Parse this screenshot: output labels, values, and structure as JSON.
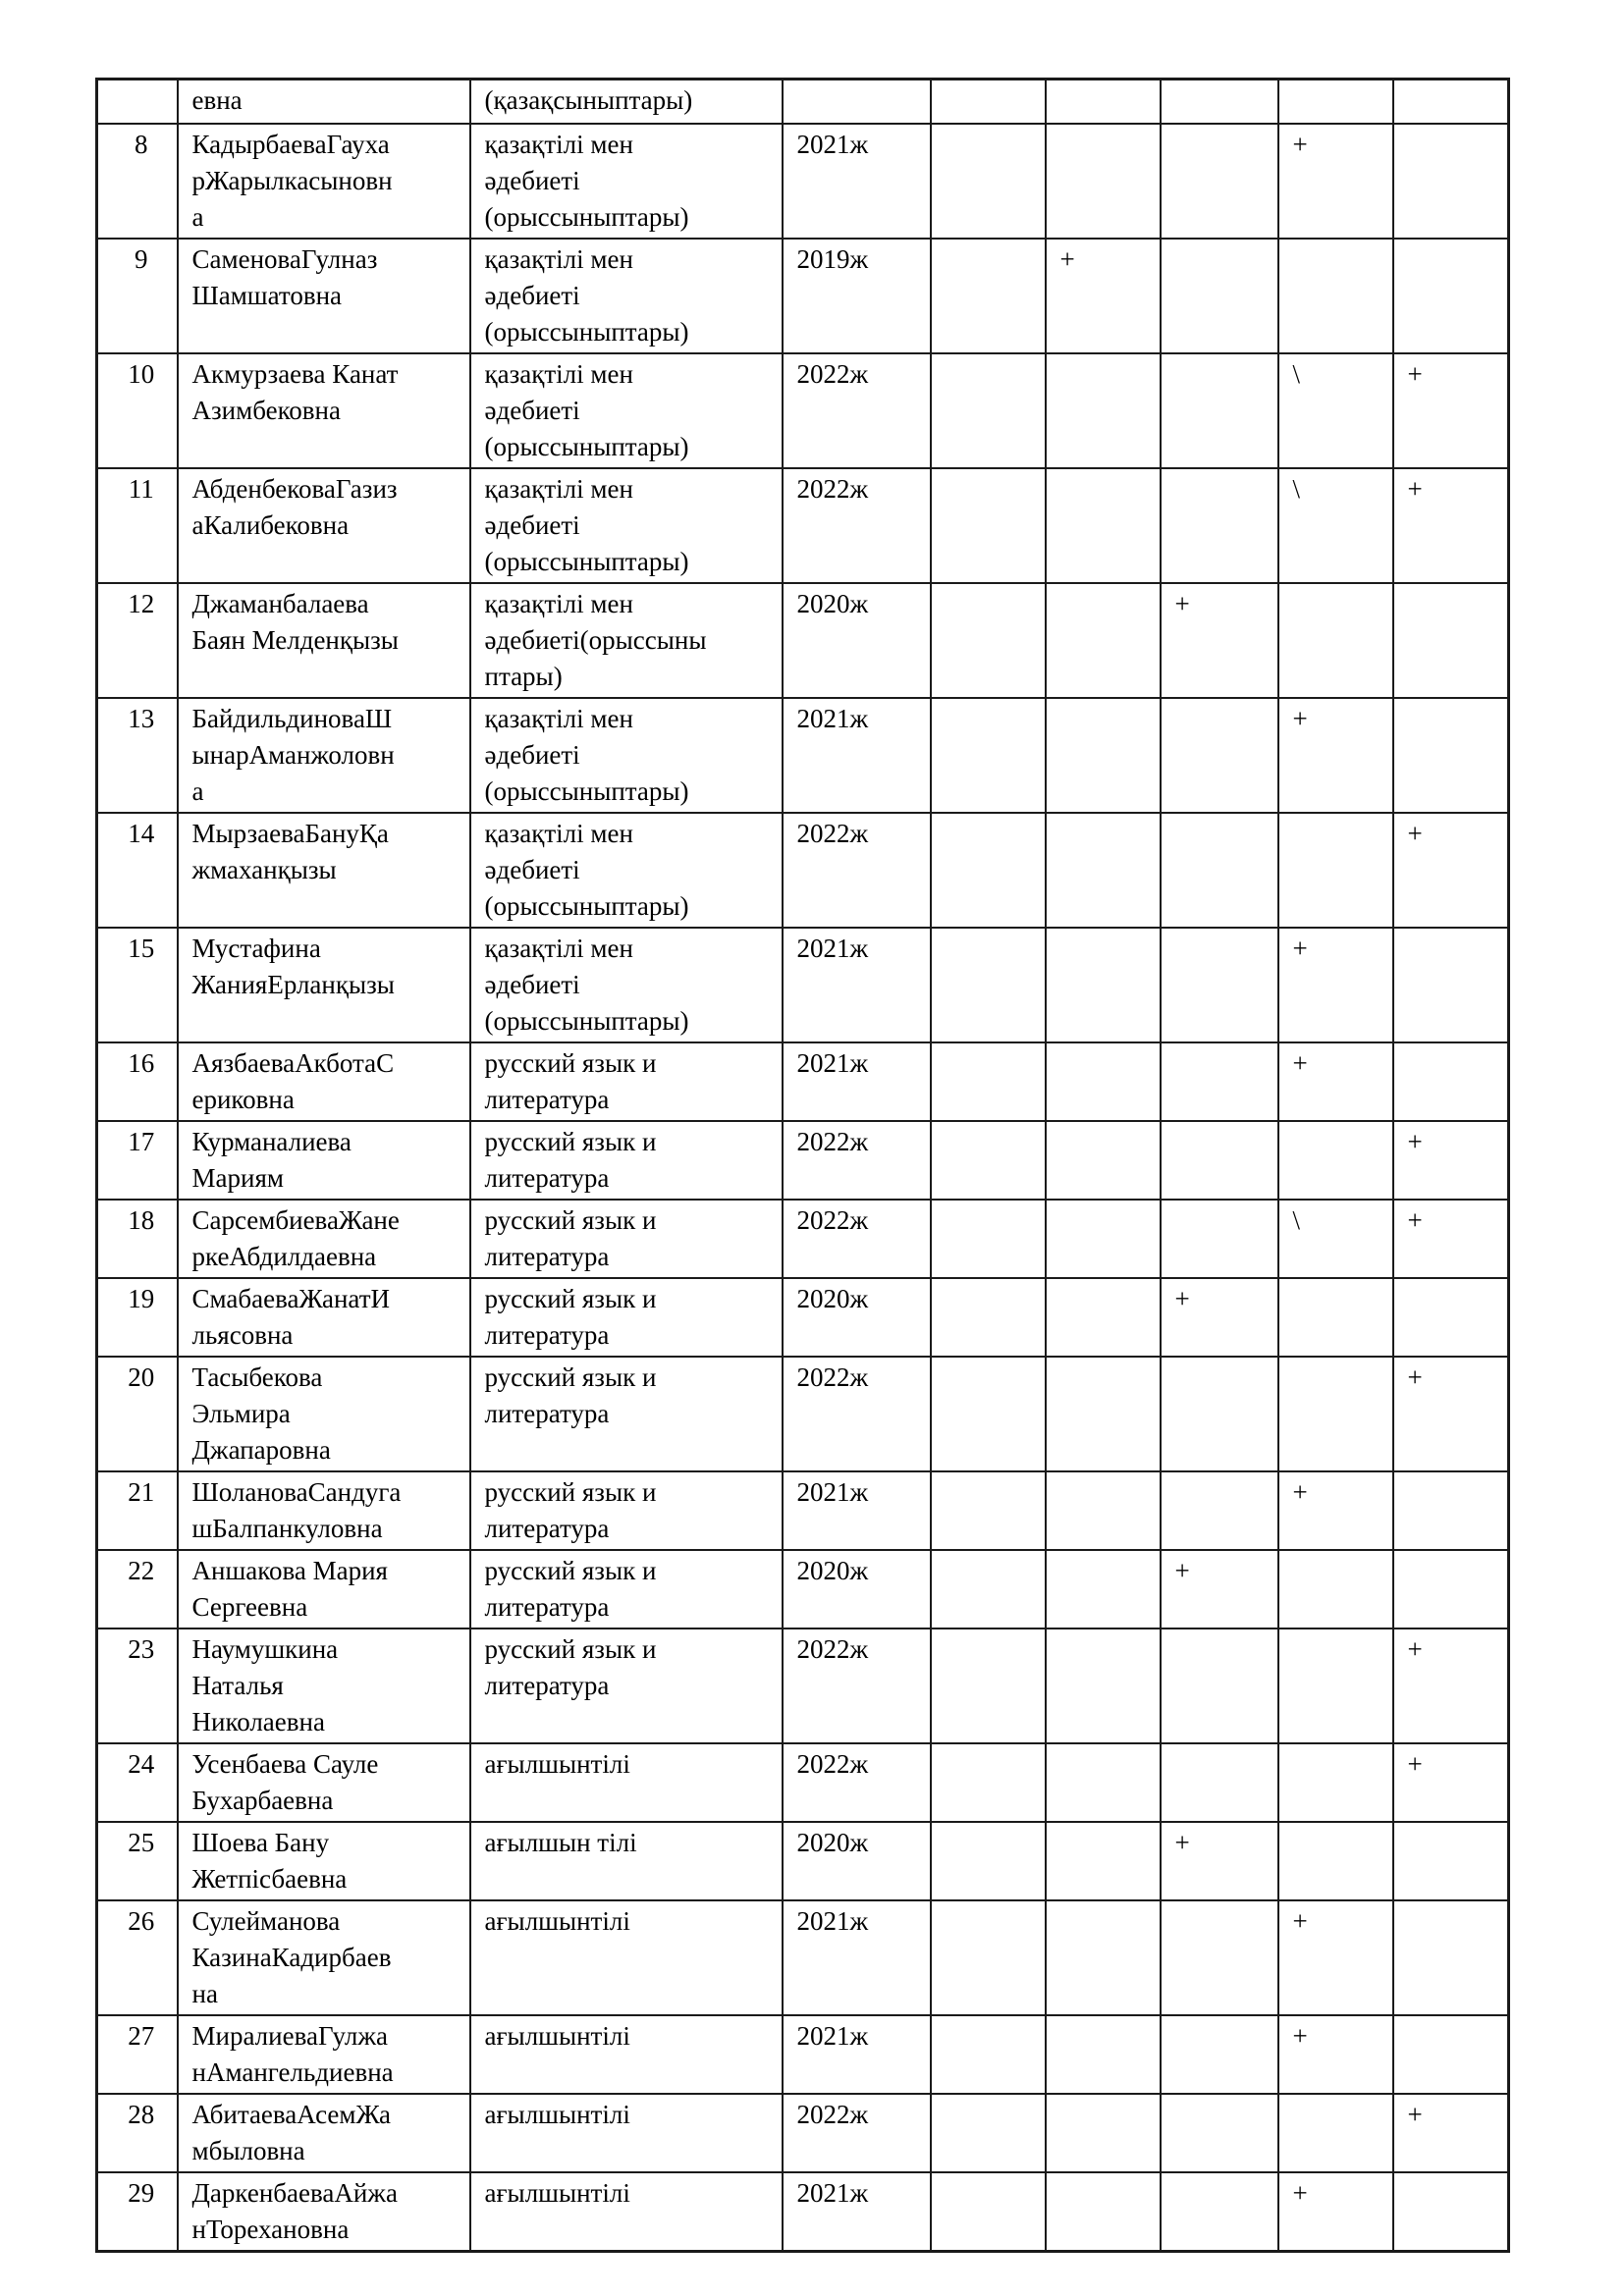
{
  "page": {
    "background_color": "#ffffff",
    "text_color": "#000000",
    "border_color": "#1a1a1a"
  },
  "table": {
    "carryover_row": {
      "no": "",
      "name": "евна",
      "subject": "(қазақсыныптары)",
      "year": "",
      "marks": [
        "",
        "",
        "",
        "",
        ""
      ]
    },
    "rows": [
      {
        "no": "8",
        "name": "КадырбаеваГауха\nрЖарылкасыновн\nа",
        "subject": "қазақтілі мен\nәдебиеті\n(орыссыныптары)",
        "year": "2021ж",
        "marks": [
          "",
          "",
          "",
          "+",
          ""
        ]
      },
      {
        "no": "9",
        "name": "СаменоваГулназ\nШамшатовна",
        "subject": "қазақтілі мен\nәдебиеті\n(орыссыныптары)",
        "year": "2019ж",
        "marks": [
          "",
          "+",
          "",
          "",
          ""
        ]
      },
      {
        "no": "10",
        "name": "Акмурзаева Канат\nАзимбековна",
        "subject": "қазақтілі мен\nәдебиеті\n(орыссыныптары)",
        "year": "2022ж",
        "marks": [
          "",
          "",
          "",
          "\\",
          "+"
        ]
      },
      {
        "no": "11",
        "name": "АбденбековаГазиз\nаКалибековна",
        "subject": "қазақтілі мен\nәдебиеті\n(орыссыныптары)",
        "year": "2022ж",
        "marks": [
          "",
          "",
          "",
          "\\",
          "+"
        ]
      },
      {
        "no": "12",
        "name": "Джаманбалаева\nБаян Мелденқызы",
        "subject": "қазақтілі мен\nәдебиеті(орыссыны\nптары)",
        "year": "2020ж",
        "marks": [
          "",
          "",
          "+",
          "",
          ""
        ]
      },
      {
        "no": "13",
        "name": "БайдильдиноваШ\nынарАманжоловн\nа",
        "subject": "қазақтілі мен\nәдебиеті\n(орыссыныптары)",
        "year": "2021ж",
        "marks": [
          "",
          "",
          "",
          "+",
          ""
        ]
      },
      {
        "no": "14",
        "name": "МырзаеваБануҚа\nжмаханқызы",
        "subject": "қазақтілі мен\nәдебиеті\n(орыссыныптары)",
        "year": "2022ж",
        "marks": [
          "",
          "",
          "",
          "",
          "+"
        ]
      },
      {
        "no": "15",
        "name": "Мустафина\nЖанияЕрланқызы",
        "subject": "қазақтілі мен\nәдебиеті\n(орыссыныптары)",
        "year": "2021ж",
        "marks": [
          "",
          "",
          "",
          "+",
          ""
        ]
      },
      {
        "no": "16",
        "name": "АязбаеваАкботаС\nериковна",
        "subject": "русский язык и\nлитература",
        "year": "2021ж",
        "marks": [
          "",
          "",
          "",
          "+",
          ""
        ]
      },
      {
        "no": "17",
        "name": "Курманалиева\nМариям",
        "subject": "русский язык и\nлитература",
        "year": "2022ж",
        "marks": [
          "",
          "",
          "",
          "",
          "+"
        ]
      },
      {
        "no": "18",
        "name": "СарсембиеваЖане\nркеАбдилдаевна",
        "subject": "русский язык и\nлитература",
        "year": "2022ж",
        "marks": [
          "",
          "",
          "",
          "\\",
          "+"
        ]
      },
      {
        "no": "19",
        "name": "СмабаеваЖанатИ\nльясовна",
        "subject": "русский язык и\nлитература",
        "year": "2020ж",
        "marks": [
          "",
          "",
          "+",
          "",
          ""
        ]
      },
      {
        "no": "20",
        "name": "Тасыбекова\nЭльмира\nДжапаровна",
        "subject": "русский язык и\nлитература",
        "year": "2022ж",
        "marks": [
          "",
          "",
          "",
          "",
          "+"
        ]
      },
      {
        "no": "21",
        "name": "ШолановаСандуга\nшБалпанкуловна",
        "subject": "русский язык и\nлитература",
        "year": "2021ж",
        "marks": [
          "",
          "",
          "",
          "+",
          ""
        ]
      },
      {
        "no": "22",
        "name": "Аншакова Мария\nСергеевна",
        "subject": "русский язык и\nлитература",
        "year": "2020ж",
        "marks": [
          "",
          "",
          "+",
          "",
          ""
        ]
      },
      {
        "no": "23",
        "name": "Наумушкина\nНаталья\nНиколаевна",
        "subject": "русский язык и\nлитература",
        "year": "2022ж",
        "marks": [
          "",
          "",
          "",
          "",
          "+"
        ]
      },
      {
        "no": "24",
        "name": "Усенбаева Сауле\nБухарбаевна",
        "subject": "ағылшынтілі",
        "year": "2022ж",
        "marks": [
          "",
          "",
          "",
          "",
          "+"
        ]
      },
      {
        "no": "25",
        "name": "Шоева Бану\nЖетпісбаевна",
        "subject": "ағылшын тілі",
        "year": "2020ж",
        "marks": [
          "",
          "",
          "+",
          "",
          ""
        ]
      },
      {
        "no": "26",
        "name": "Сулейманова\nКазинаКадирбаев\nна",
        "subject": "ағылшынтілі",
        "year": "2021ж",
        "marks": [
          "",
          "",
          "",
          "+",
          ""
        ]
      },
      {
        "no": "27",
        "name": "МиралиеваГулжа\nнАмангельдиевна",
        "subject": "ағылшынтілі",
        "year": "2021ж",
        "marks": [
          "",
          "",
          "",
          "+",
          ""
        ]
      },
      {
        "no": "28",
        "name": "АбитаеваАсемЖа\nмбыловна",
        "subject": "ағылшынтілі",
        "year": "2022ж",
        "marks": [
          "",
          "",
          "",
          "",
          "+"
        ]
      },
      {
        "no": "29",
        "name": "ДаркенбаеваАйжа\nнТорехановна",
        "subject": "ағылшынтілі",
        "year": "2021ж",
        "marks": [
          "",
          "",
          "",
          "+",
          ""
        ]
      }
    ]
  }
}
